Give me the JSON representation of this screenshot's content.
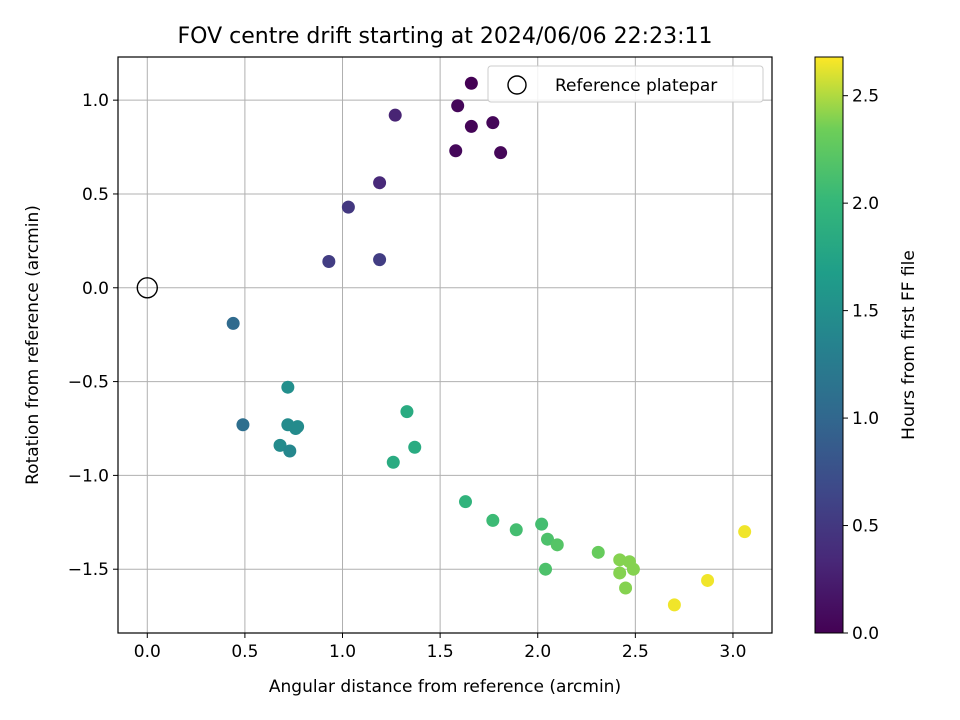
{
  "chart_data": {
    "type": "scatter",
    "title": "FOV centre drift starting at 2024/06/06 22:23:11",
    "xlabel": "Angular distance from reference (arcmin)",
    "ylabel": "Rotation from reference (arcmin)",
    "xlim": [
      -0.15,
      3.2
    ],
    "ylim": [
      -1.84,
      1.23
    ],
    "xticks": [
      0.0,
      0.5,
      1.0,
      1.5,
      2.0,
      2.5,
      3.0
    ],
    "yticks": [
      -1.5,
      -1.0,
      -0.5,
      0.0,
      0.5,
      1.0
    ],
    "xtick_labels": [
      "0.0",
      "0.5",
      "1.0",
      "1.5",
      "2.0",
      "2.5",
      "3.0"
    ],
    "ytick_labels": [
      "−1.5",
      "−1.0",
      "−0.5",
      "0.0",
      "0.5",
      "1.0"
    ],
    "grid": true,
    "legend": {
      "position": "top-right",
      "entries": [
        "Reference platepar"
      ]
    },
    "reference_point": {
      "x": 0.0,
      "y": 0.0
    },
    "colorbar": {
      "label": "Hours from first FF file",
      "range": [
        0.0,
        2.68
      ],
      "ticks": [
        0.0,
        0.5,
        1.0,
        1.5,
        2.0,
        2.5
      ],
      "tick_labels": [
        "0.0",
        "0.5",
        "1.0",
        "1.5",
        "2.0",
        "2.5"
      ],
      "colormap": "viridis"
    },
    "points": [
      {
        "x": 1.66,
        "y": 1.09,
        "c": 0.0
      },
      {
        "x": 1.59,
        "y": 0.97,
        "c": 0.05
      },
      {
        "x": 1.66,
        "y": 0.86,
        "c": 0.03
      },
      {
        "x": 1.77,
        "y": 0.88,
        "c": 0.04
      },
      {
        "x": 1.58,
        "y": 0.73,
        "c": 0.06
      },
      {
        "x": 1.81,
        "y": 0.72,
        "c": 0.05
      },
      {
        "x": 1.27,
        "y": 0.92,
        "c": 0.3
      },
      {
        "x": 1.19,
        "y": 0.56,
        "c": 0.35
      },
      {
        "x": 1.03,
        "y": 0.43,
        "c": 0.5
      },
      {
        "x": 0.93,
        "y": 0.14,
        "c": 0.55
      },
      {
        "x": 1.19,
        "y": 0.15,
        "c": 0.55
      },
      {
        "x": 0.44,
        "y": -0.19,
        "c": 1.05
      },
      {
        "x": 0.49,
        "y": -0.73,
        "c": 1.1
      },
      {
        "x": 0.72,
        "y": -0.53,
        "c": 1.5
      },
      {
        "x": 0.72,
        "y": -0.73,
        "c": 1.45
      },
      {
        "x": 0.76,
        "y": -0.75,
        "c": 1.45
      },
      {
        "x": 0.77,
        "y": -0.74,
        "c": 1.45
      },
      {
        "x": 0.68,
        "y": -0.84,
        "c": 1.45
      },
      {
        "x": 0.73,
        "y": -0.87,
        "c": 1.4
      },
      {
        "x": 1.33,
        "y": -0.66,
        "c": 1.85
      },
      {
        "x": 1.37,
        "y": -0.85,
        "c": 1.85
      },
      {
        "x": 1.26,
        "y": -0.93,
        "c": 1.85
      },
      {
        "x": 1.63,
        "y": -1.14,
        "c": 1.95
      },
      {
        "x": 1.77,
        "y": -1.24,
        "c": 2.05
      },
      {
        "x": 1.89,
        "y": -1.29,
        "c": 2.1
      },
      {
        "x": 2.02,
        "y": -1.26,
        "c": 2.1
      },
      {
        "x": 2.05,
        "y": -1.34,
        "c": 2.15
      },
      {
        "x": 2.1,
        "y": -1.37,
        "c": 2.2
      },
      {
        "x": 2.04,
        "y": -1.5,
        "c": 2.15
      },
      {
        "x": 2.31,
        "y": -1.41,
        "c": 2.3
      },
      {
        "x": 2.42,
        "y": -1.45,
        "c": 2.4
      },
      {
        "x": 2.47,
        "y": -1.46,
        "c": 2.4
      },
      {
        "x": 2.42,
        "y": -1.52,
        "c": 2.4
      },
      {
        "x": 2.49,
        "y": -1.5,
        "c": 2.4
      },
      {
        "x": 2.45,
        "y": -1.6,
        "c": 2.4
      },
      {
        "x": 2.7,
        "y": -1.69,
        "c": 2.65
      },
      {
        "x": 2.87,
        "y": -1.56,
        "c": 2.65
      },
      {
        "x": 3.06,
        "y": -1.3,
        "c": 2.65
      }
    ]
  }
}
